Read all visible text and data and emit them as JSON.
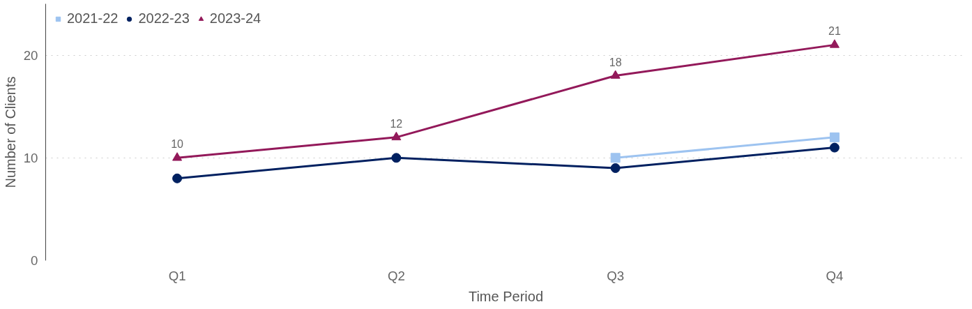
{
  "chart_data": {
    "type": "line",
    "xlabel": "Time Period",
    "ylabel": "Number of Clients",
    "categories": [
      "Q1",
      "Q2",
      "Q3",
      "Q4"
    ],
    "series": [
      {
        "name": "2021-22",
        "color": "#9dc3f0",
        "marker": "square",
        "values": [
          null,
          null,
          10,
          12
        ]
      },
      {
        "name": "2022-23",
        "color": "#002060",
        "marker": "circle",
        "values": [
          8,
          10,
          9,
          11
        ]
      },
      {
        "name": "2023-24",
        "color": "#93195a",
        "marker": "triangle",
        "values": [
          10,
          12,
          18,
          21
        ],
        "value_labels": [
          "10",
          "12",
          "18",
          "21"
        ]
      }
    ],
    "ylim": [
      0,
      25
    ],
    "yticks": [
      0,
      10,
      20
    ],
    "grid": "y",
    "legend": "top left"
  }
}
